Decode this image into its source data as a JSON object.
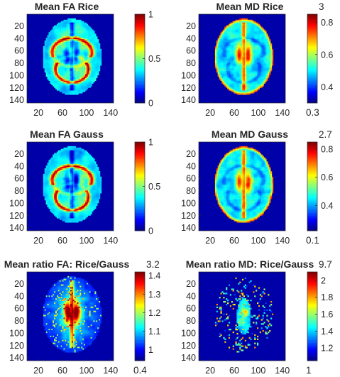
{
  "colormap": "jet",
  "background_color": "#0000a8",
  "chart_data": [
    {
      "type": "heatmap",
      "title": "Mean FA Rice",
      "map": "FA",
      "x_ticks": [
        "20",
        "60",
        "100",
        "140"
      ],
      "y_ticks": [
        "20",
        "40",
        "60",
        "80",
        "100",
        "120",
        "140"
      ],
      "xlim": [
        1,
        145
      ],
      "ylim": [
        1,
        145
      ],
      "colorbar": {
        "range": [
          0,
          1
        ],
        "ticks": [
          "0",
          "0.5",
          "1"
        ]
      },
      "top_label": "",
      "bottom_label": ""
    },
    {
      "type": "heatmap",
      "title": "Mean MD Rice",
      "map": "MD",
      "x_ticks": [
        "20",
        "60",
        "100",
        "140"
      ],
      "y_ticks": [
        "20",
        "40",
        "60",
        "80",
        "100",
        "120",
        "140"
      ],
      "xlim": [
        1,
        145
      ],
      "ylim": [
        1,
        145
      ],
      "colorbar": {
        "range": [
          0.3,
          0.85
        ],
        "ticks": [
          "0.4",
          "0.6",
          "0.8"
        ]
      },
      "top_label": "3",
      "bottom_label": "0.3"
    },
    {
      "type": "heatmap",
      "title": "Mean FA Gauss",
      "map": "FA",
      "x_ticks": [
        "20",
        "60",
        "100",
        "140"
      ],
      "y_ticks": [
        "20",
        "40",
        "60",
        "80",
        "100",
        "120",
        "140"
      ],
      "xlim": [
        1,
        145
      ],
      "ylim": [
        1,
        145
      ],
      "colorbar": {
        "range": [
          0,
          1
        ],
        "ticks": [
          "0",
          "0.5",
          "1"
        ]
      },
      "top_label": "",
      "bottom_label": ""
    },
    {
      "type": "heatmap",
      "title": "Mean MD Gauss",
      "map": "MD",
      "x_ticks": [
        "20",
        "60",
        "100",
        "140"
      ],
      "y_ticks": [
        "20",
        "40",
        "60",
        "80",
        "100",
        "120",
        "140"
      ],
      "xlim": [
        1,
        145
      ],
      "ylim": [
        1,
        145
      ],
      "colorbar": {
        "range": [
          0.22,
          0.85
        ],
        "ticks": [
          "0.4",
          "0.6",
          "0.8"
        ]
      },
      "top_label": "2.7",
      "bottom_label": "0.1"
    },
    {
      "type": "heatmap",
      "title": "Mean ratio FA: Rice/Gauss",
      "map": "ratioFA",
      "x_ticks": [
        "20",
        "60",
        "100",
        "140"
      ],
      "y_ticks": [
        "20",
        "40",
        "60",
        "80",
        "100",
        "120",
        "140"
      ],
      "xlim": [
        1,
        145
      ],
      "ylim": [
        1,
        145
      ],
      "colorbar": {
        "range": [
          0.94,
          1.42
        ],
        "ticks": [
          "1",
          "1.1",
          "1.2",
          "1.3",
          "1.4"
        ]
      },
      "top_label": "3.2",
      "bottom_label": "0.4"
    },
    {
      "type": "heatmap",
      "title": "Mean ratio MD: Rice/Gauss",
      "map": "ratioMD",
      "x_ticks": [
        "20",
        "60",
        "100",
        "140"
      ],
      "y_ticks": [
        "20",
        "40",
        "60",
        "80",
        "100",
        "120",
        "140"
      ],
      "xlim": [
        1,
        145
      ],
      "ylim": [
        1,
        145
      ],
      "colorbar": {
        "range": [
          1.05,
          2.1
        ],
        "ticks": [
          "1.2",
          "1.4",
          "1.6",
          "1.8",
          "2"
        ]
      },
      "top_label": "9.7",
      "bottom_label": "1"
    }
  ]
}
